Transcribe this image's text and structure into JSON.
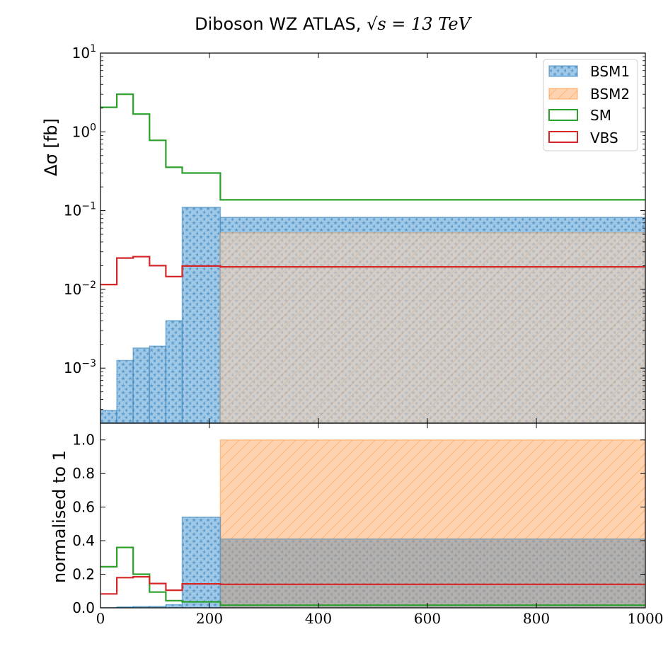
{
  "title": {
    "prefix": "Diboson  WZ ATLAS,  ",
    "math": "√s = 13 TeV"
  },
  "colors": {
    "BSM1": "#1f77b4",
    "BSM2": "#ff7f0e",
    "SM": "#2ca02c",
    "VBS": "#d62728"
  },
  "chart_data": [
    {
      "type": "histogram",
      "panel": "top",
      "ylabel": "Δσ [fb]",
      "yscale": "log",
      "ylim": [
        0.0002,
        10
      ],
      "xlim": [
        0,
        1000
      ],
      "bin_edges": [
        0,
        30,
        60,
        90,
        120,
        150,
        220,
        1000
      ],
      "y_tick_labels": [
        "10^-3",
        "10^-2",
        "10^-1",
        "10^0",
        "10^1"
      ],
      "legend_position": "top-right",
      "series": [
        {
          "name": "BSM1",
          "style": "filled-stars",
          "values": [
            0.00029,
            0.00125,
            0.0018,
            0.0019,
            0.004,
            0.11,
            0.082
          ]
        },
        {
          "name": "BSM2",
          "style": "filled-hatch",
          "values": [
            0,
            0,
            0,
            0,
            0,
            0,
            0.052
          ]
        },
        {
          "name": "SM",
          "style": "step",
          "values": [
            2.05,
            3.0,
            1.68,
            0.78,
            0.355,
            0.3,
            0.137
          ]
        },
        {
          "name": "VBS",
          "style": "step",
          "values": [
            0.0115,
            0.025,
            0.026,
            0.02,
            0.0145,
            0.0198,
            0.0193
          ]
        }
      ]
    },
    {
      "type": "histogram",
      "panel": "bottom",
      "ylabel": "normalised to 1",
      "yscale": "linear",
      "ylim": [
        0,
        1.1
      ],
      "xlim": [
        0,
        1000
      ],
      "bin_edges": [
        0,
        30,
        60,
        90,
        120,
        150,
        220,
        1000
      ],
      "y_ticks": [
        "0.0",
        "0.2",
        "0.4",
        "0.6",
        "0.8",
        "1.0"
      ],
      "x_ticks": [
        "0",
        "200",
        "400",
        "600",
        "800",
        "1000"
      ],
      "series": [
        {
          "name": "BSM1",
          "values": [
            0.001,
            0.0055,
            0.008,
            0.009,
            0.019,
            0.54,
            0.41
          ]
        },
        {
          "name": "BSM2",
          "values": [
            0,
            0,
            0,
            0,
            0,
            0,
            1.0
          ]
        },
        {
          "name": "SM",
          "values": [
            0.245,
            0.36,
            0.2,
            0.094,
            0.043,
            0.036,
            0.016
          ]
        },
        {
          "name": "VBS",
          "values": [
            0.083,
            0.18,
            0.185,
            0.145,
            0.105,
            0.143,
            0.14
          ]
        }
      ]
    }
  ]
}
